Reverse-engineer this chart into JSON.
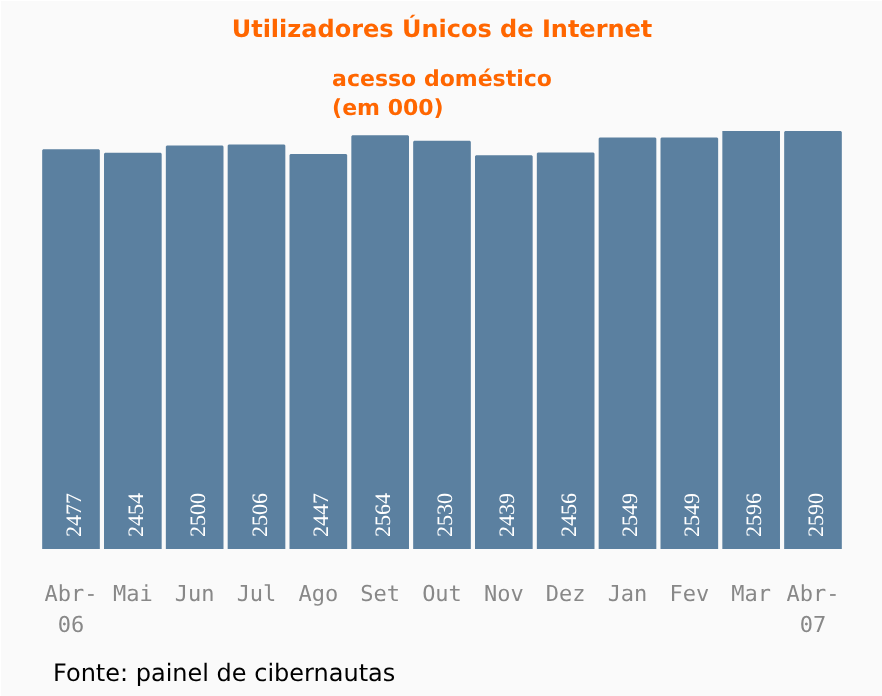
{
  "chart_data": {
    "type": "bar",
    "title": "Utilizadores Únicos de Internet",
    "subtitle": "acesso doméstico\n(em 000)",
    "categories": [
      "Abr-\n06",
      "Mai",
      "Jun",
      "Jul",
      "Ago",
      "Set",
      "Out",
      "Nov",
      "Dez",
      "Jan",
      "Fev",
      "Mar",
      "Abr-\n07"
    ],
    "values": [
      2477,
      2454,
      2500,
      2506,
      2447,
      2564,
      2530,
      2439,
      2456,
      2549,
      2549,
      2596,
      2590
    ],
    "color": "#5b80a0",
    "data_labels": true,
    "annotations": [
      "Fonte: painel de cibernautas"
    ]
  }
}
